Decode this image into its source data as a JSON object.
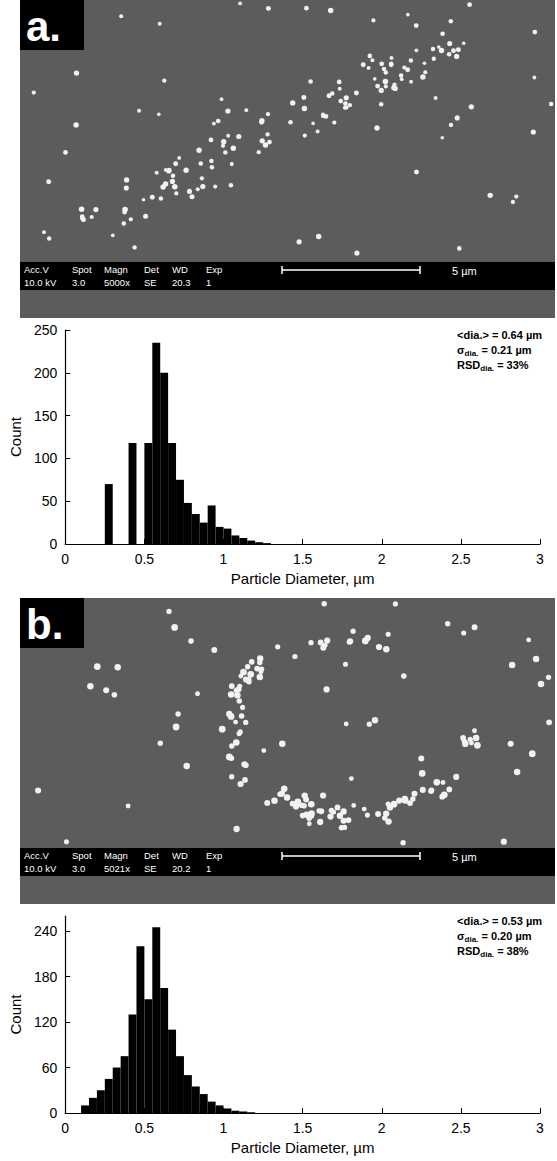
{
  "micrographs": [
    {
      "label": "a.",
      "fields": [
        [
          "Acc.V",
          "10.0 kV"
        ],
        [
          "Spot",
          "3.0"
        ],
        [
          "Magn",
          "5000x"
        ],
        [
          "Det",
          "SE"
        ],
        [
          "WD",
          "20.3"
        ],
        [
          "Exp",
          "1"
        ]
      ],
      "scale_bar": "5 µm"
    },
    {
      "label": "b.",
      "fields": [
        [
          "Acc.V",
          "10.0 kV"
        ],
        [
          "Spot",
          "3.0"
        ],
        [
          "Magn",
          "5021x"
        ],
        [
          "Det",
          "SE"
        ],
        [
          "WD",
          "20.2"
        ],
        [
          "Exp",
          "1"
        ]
      ],
      "scale_bar": "5 µm"
    }
  ],
  "chart_data": [
    {
      "type": "histogram",
      "x_label": "Particle Diameter, µm",
      "y_label": "Count",
      "color": "#000000",
      "grid": false,
      "bins": [
        0.25,
        0.3,
        0.35,
        0.4,
        0.45,
        0.5,
        0.55,
        0.6,
        0.65,
        0.7,
        0.75,
        0.8,
        0.85,
        0.9,
        0.95,
        1.0,
        1.05,
        1.1,
        1.15,
        1.2,
        1.25,
        1.3
      ],
      "values": [
        70,
        0,
        0,
        118,
        0,
        118,
        235,
        200,
        118,
        75,
        48,
        35,
        25,
        45,
        20,
        18,
        10,
        7,
        4,
        2,
        1
      ],
      "xlim": [
        0,
        3
      ],
      "xticks": [
        0,
        0.5,
        1,
        1.5,
        2,
        2.5,
        3
      ],
      "ylim": [
        0,
        250
      ],
      "yticks": [
        0,
        50,
        100,
        150,
        200,
        250
      ],
      "annotations": [
        {
          "main": "<dia.> = 0.64 µm"
        },
        {
          "main": "σ",
          "sub": "dia.",
          "rest": " = 0.21 µm"
        },
        {
          "main": "RSD",
          "sub": "dia.",
          "rest": " = 33%"
        }
      ]
    },
    {
      "type": "histogram",
      "x_label": "Particle Diameter, µm",
      "y_label": "Count",
      "color": "#000000",
      "grid": false,
      "bins": [
        0.1,
        0.15,
        0.2,
        0.25,
        0.3,
        0.35,
        0.4,
        0.45,
        0.5,
        0.55,
        0.6,
        0.65,
        0.7,
        0.75,
        0.8,
        0.85,
        0.9,
        0.95,
        1.0,
        1.05,
        1.1,
        1.15,
        1.2
      ],
      "values": [
        10,
        20,
        30,
        45,
        60,
        75,
        130,
        220,
        150,
        245,
        165,
        110,
        75,
        50,
        35,
        25,
        15,
        10,
        6,
        3,
        2,
        1
      ],
      "xlim": [
        0,
        3
      ],
      "xticks": [
        0,
        0.5,
        1,
        1.5,
        2,
        2.5,
        3
      ],
      "ylim": [
        0,
        260
      ],
      "yticks": [
        0,
        60,
        120,
        180,
        240
      ],
      "annotations": [
        {
          "main": "<dia.> = 0.53 µm"
        },
        {
          "main": "σ",
          "sub": "dia.",
          "rest": " = 0.20 µm"
        },
        {
          "main": "RSD",
          "sub": "dia.",
          "rest": " = 38%"
        }
      ]
    }
  ]
}
